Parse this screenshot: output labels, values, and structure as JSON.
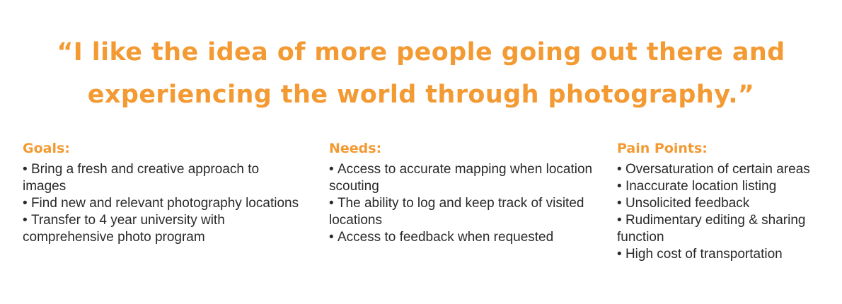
{
  "quote": {
    "line1": "“I like the idea of more people going out there and",
    "line2": "experiencing the world through photography.”"
  },
  "goals": {
    "title": "Goals:",
    "items": [
      "Bring a fresh and creative approach to images",
      "Find new and relevant photography locations",
      "Transfer to 4 year university with comprehensive photo program"
    ]
  },
  "needs": {
    "title": "Needs:",
    "items": [
      "Access to accurate mapping when location scouting",
      "The ability to log and keep track of visited locations",
      "Access to feedback when requested"
    ]
  },
  "pain_points": {
    "title": "Pain Points:",
    "items": [
      "Oversaturation of certain areas",
      "Inaccurate location listing",
      "Unsolicited feedback",
      "Rudimentary editing & sharing function",
      "High cost of transportation"
    ]
  },
  "colors": {
    "accent": "#f39a33",
    "text": "#2a2a2a",
    "background": "#ffffff"
  }
}
